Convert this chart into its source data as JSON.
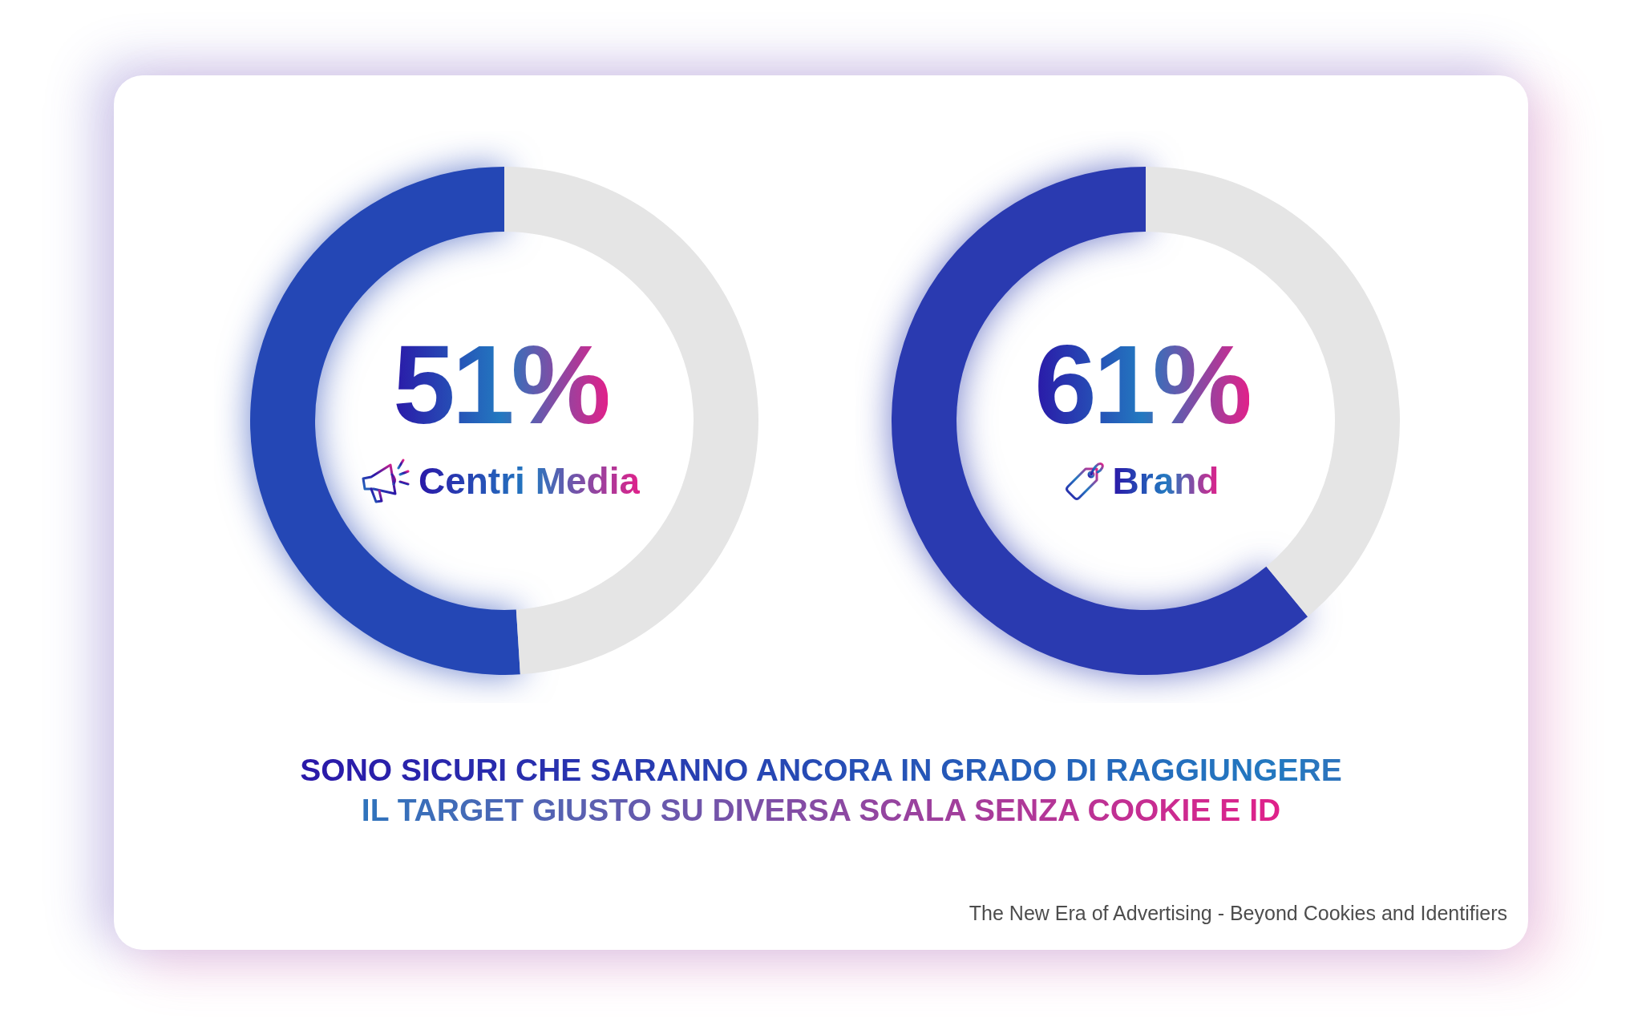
{
  "chart_data": [
    {
      "type": "donut",
      "title": "Centri Media",
      "categories": [
        null,
        null
      ],
      "values": [
        51,
        49
      ],
      "colors": [
        "#2447b5",
        "#e5e5e5"
      ],
      "value_labels": [
        "51%",
        null
      ]
    },
    {
      "type": "donut",
      "title": "Brand",
      "categories": [
        null,
        null
      ],
      "values": [
        61,
        39
      ],
      "colors": [
        "#2a3ab0",
        "#e5e5e5"
      ],
      "value_labels": [
        "61%",
        null
      ]
    },
    {
      "type": "other",
      "title": "SONO SICURI CHE SARANNO ANCORA IN GRADO DI RAGGIUNGERE IL TARGET GIUSTO SU DIVERSA SCALA SENZA COOKIE E ID",
      "annotations": [
        "The New Era of Advertising - Beyond Cookies and Identifiers"
      ]
    }
  ]
}
